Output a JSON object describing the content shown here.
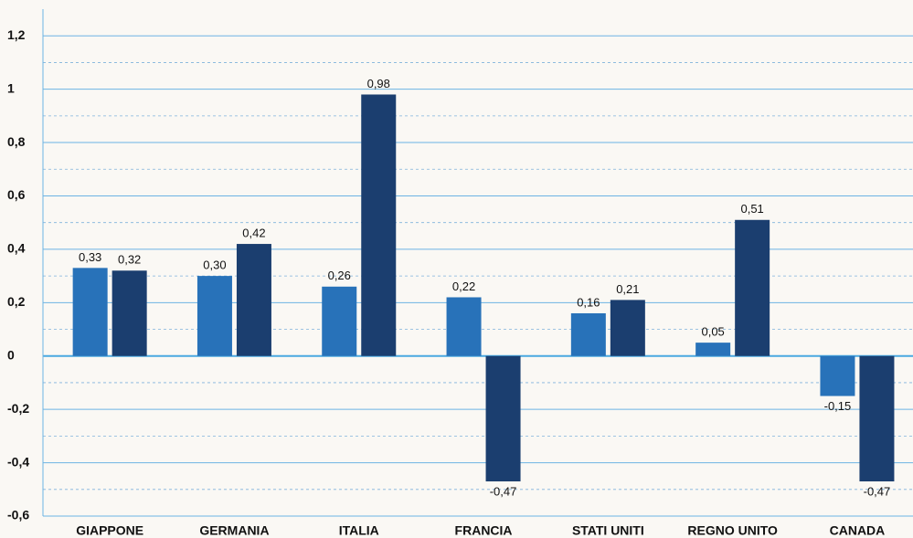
{
  "chart_data": {
    "type": "bar",
    "categories": [
      "GIAPPONE",
      "GERMANIA",
      "ITALIA",
      "FRANCIA",
      "STATI UNITI",
      "REGNO UNITO",
      "CANADA"
    ],
    "series": [
      {
        "color": "#2872b9",
        "values": [
          0.33,
          0.3,
          0.26,
          0.22,
          0.16,
          0.05,
          -0.15
        ],
        "value_labels": [
          "0,33",
          "0,30",
          "0,26",
          "0,22",
          "0,16",
          "0,05",
          "-0,15"
        ]
      },
      {
        "color": "#1b3e6f",
        "values": [
          0.32,
          0.42,
          0.98,
          -0.47,
          0.21,
          0.51,
          -0.47
        ],
        "value_labels": [
          "0,32",
          "0,42",
          "0,98",
          "-0,47",
          "0,21",
          "0,51",
          "-0,47"
        ]
      }
    ],
    "ylim": [
      -0.6,
      1.3
    ],
    "yticks": [
      {
        "value": 1.2,
        "label": "1,2"
      },
      1,
      {
        "value": 0.8,
        "label": "0,8"
      },
      {
        "value": 0.6,
        "label": "0,6"
      },
      {
        "value": 0.4,
        "label": "0,4"
      },
      {
        "value": 0.2,
        "label": "0,2"
      },
      0,
      {
        "value": -0.2,
        "label": "-0,2"
      },
      {
        "value": -0.4,
        "label": "-0,4"
      },
      {
        "value": -0.6,
        "label": "-0,6"
      }
    ],
    "minor_yticks": [
      1.1,
      0.9,
      0.7,
      0.5,
      0.3,
      0.1,
      -0.1,
      -0.3,
      -0.5
    ],
    "grid": true
  }
}
